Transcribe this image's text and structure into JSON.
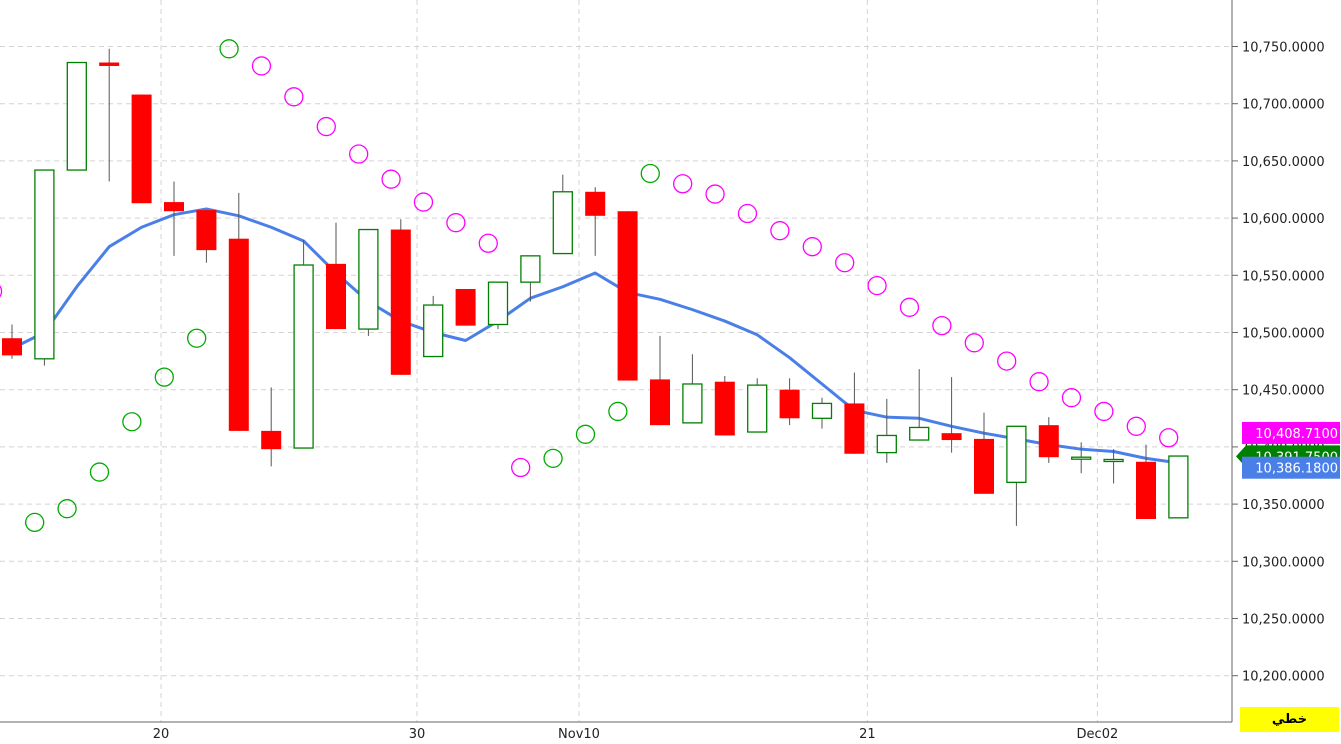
{
  "chart_data": {
    "type": "candlestick",
    "title": "",
    "xlabel": "",
    "ylabel": "",
    "ylim": [
      10160,
      10785
    ],
    "y_ticks": [
      10200,
      10250,
      10300,
      10350,
      10400,
      10450,
      10500,
      10550,
      10600,
      10650,
      10700,
      10750
    ],
    "y_tick_labels": [
      "10,200.0000",
      "10,250.0000",
      "10,300.0000",
      "10,350.0000",
      "10,400.0000",
      "10,450.0000",
      "10,500.0000",
      "10,550.0000",
      "10,600.0000",
      "10,650.0000",
      "10,700.0000",
      "10,750.0000"
    ],
    "grid": true,
    "x_labels": [
      {
        "index": 4.6,
        "label": "20"
      },
      {
        "index": 12.5,
        "label": "30"
      },
      {
        "index": 17.5,
        "label": "Nov10"
      },
      {
        "index": 26.4,
        "label": "21"
      },
      {
        "index": 33.5,
        "label": "Dec02"
      }
    ],
    "candles": [
      {
        "o": 10495,
        "h": 10507,
        "l": 10477,
        "c": 10480
      },
      {
        "o": 10477,
        "h": 10642,
        "l": 10471,
        "c": 10642
      },
      {
        "o": 10642,
        "h": 10736,
        "l": 10642,
        "c": 10736
      },
      {
        "o": 10736,
        "h": 10748,
        "l": 10632,
        "c": 10733
      },
      {
        "o": 10708,
        "h": 10708,
        "l": 10613,
        "c": 10613
      },
      {
        "o": 10614,
        "h": 10632,
        "l": 10567,
        "c": 10606
      },
      {
        "o": 10607,
        "h": 10607,
        "l": 10561,
        "c": 10572
      },
      {
        "o": 10582,
        "h": 10622,
        "l": 10414,
        "c": 10414
      },
      {
        "o": 10414,
        "h": 10452,
        "l": 10383,
        "c": 10398
      },
      {
        "o": 10399,
        "h": 10581,
        "l": 10399,
        "c": 10559
      },
      {
        "o": 10560,
        "h": 10596,
        "l": 10503,
        "c": 10503
      },
      {
        "o": 10503,
        "h": 10590,
        "l": 10497,
        "c": 10590
      },
      {
        "o": 10590,
        "h": 10599,
        "l": 10463,
        "c": 10463
      },
      {
        "o": 10479,
        "h": 10532,
        "l": 10479,
        "c": 10524
      },
      {
        "o": 10538,
        "h": 10538,
        "l": 10506,
        "c": 10506
      },
      {
        "o": 10507,
        "h": 10544,
        "l": 10503,
        "c": 10544
      },
      {
        "o": 10544,
        "h": 10567,
        "l": 10527,
        "c": 10567
      },
      {
        "o": 10569,
        "h": 10638,
        "l": 10569,
        "c": 10623
      },
      {
        "o": 10623,
        "h": 10627,
        "l": 10567,
        "c": 10602
      },
      {
        "o": 10606,
        "h": 10606,
        "l": 10458,
        "c": 10458
      },
      {
        "o": 10459,
        "h": 10497,
        "l": 10419,
        "c": 10419
      },
      {
        "o": 10421,
        "h": 10481,
        "l": 10421,
        "c": 10455
      },
      {
        "o": 10457,
        "h": 10462,
        "l": 10410,
        "c": 10410
      },
      {
        "o": 10413,
        "h": 10460,
        "l": 10413,
        "c": 10454
      },
      {
        "o": 10450,
        "h": 10460,
        "l": 10419,
        "c": 10425
      },
      {
        "o": 10425,
        "h": 10443,
        "l": 10416,
        "c": 10438
      },
      {
        "o": 10438,
        "h": 10465,
        "l": 10394,
        "c": 10394
      },
      {
        "o": 10395,
        "h": 10442,
        "l": 10386,
        "c": 10410
      },
      {
        "o": 10406,
        "h": 10468,
        "l": 10406,
        "c": 10417
      },
      {
        "o": 10412,
        "h": 10461,
        "l": 10395,
        "c": 10406
      },
      {
        "o": 10407,
        "h": 10430,
        "l": 10359,
        "c": 10359
      },
      {
        "o": 10369,
        "h": 10418,
        "l": 10331,
        "c": 10418
      },
      {
        "o": 10419,
        "h": 10426,
        "l": 10386,
        "c": 10391
      },
      {
        "o": 10391,
        "h": 10404,
        "l": 10377,
        "c": 10391
      },
      {
        "o": 10389,
        "h": 10398,
        "l": 10368,
        "c": 10389
      },
      {
        "o": 10387,
        "h": 10402,
        "l": 10337,
        "c": 10337
      },
      {
        "o": 10338,
        "h": 10392,
        "l": 10338,
        "c": 10392
      }
    ],
    "moving_average": {
      "color": "#4a7fe8",
      "points": [
        [
          0,
          10486
        ],
        [
          1,
          10500
        ],
        [
          2,
          10540
        ],
        [
          3,
          10575
        ],
        [
          4,
          10592
        ],
        [
          5,
          10603
        ],
        [
          6,
          10608
        ],
        [
          7,
          10602
        ],
        [
          8,
          10592
        ],
        [
          9,
          10580
        ],
        [
          10,
          10552
        ],
        [
          11,
          10527
        ],
        [
          12,
          10510
        ],
        [
          13,
          10500
        ],
        [
          14,
          10493
        ],
        [
          15,
          10510
        ],
        [
          16,
          10530
        ],
        [
          17,
          10540
        ],
        [
          18,
          10552
        ],
        [
          19,
          10535
        ],
        [
          20,
          10529
        ],
        [
          21,
          10520
        ],
        [
          22,
          10510
        ],
        [
          23,
          10498
        ],
        [
          24,
          10478
        ],
        [
          25,
          10455
        ],
        [
          26,
          10432
        ],
        [
          27,
          10426
        ],
        [
          28,
          10425
        ],
        [
          29,
          10418
        ],
        [
          30,
          10412
        ],
        [
          31,
          10407
        ],
        [
          32,
          10402
        ],
        [
          33,
          10398
        ],
        [
          34,
          10396
        ],
        [
          35,
          10390
        ],
        [
          36,
          10386
        ]
      ]
    },
    "parabolic_sar": {
      "points": [
        {
          "i": -0.6,
          "v": 10536,
          "color": "#ff00ff"
        },
        {
          "i": 0.7,
          "v": 10334,
          "color": "#00aa00"
        },
        {
          "i": 1.7,
          "v": 10346,
          "color": "#00aa00"
        },
        {
          "i": 2.7,
          "v": 10378,
          "color": "#00aa00"
        },
        {
          "i": 3.7,
          "v": 10422,
          "color": "#00aa00"
        },
        {
          "i": 4.7,
          "v": 10461,
          "color": "#00aa00"
        },
        {
          "i": 5.7,
          "v": 10495,
          "color": "#00aa00"
        },
        {
          "i": 6.7,
          "v": 10748,
          "color": "#00aa00"
        },
        {
          "i": 7.7,
          "v": 10733,
          "color": "#ff00ff"
        },
        {
          "i": 8.7,
          "v": 10706,
          "color": "#ff00ff"
        },
        {
          "i": 9.7,
          "v": 10680,
          "color": "#ff00ff"
        },
        {
          "i": 10.7,
          "v": 10656,
          "color": "#ff00ff"
        },
        {
          "i": 11.7,
          "v": 10634,
          "color": "#ff00ff"
        },
        {
          "i": 12.7,
          "v": 10614,
          "color": "#ff00ff"
        },
        {
          "i": 13.7,
          "v": 10596,
          "color": "#ff00ff"
        },
        {
          "i": 14.7,
          "v": 10578,
          "color": "#ff00ff"
        },
        {
          "i": 15.7,
          "v": 10382,
          "color": "#ff00ff"
        },
        {
          "i": 16.7,
          "v": 10390,
          "color": "#00aa00"
        },
        {
          "i": 17.7,
          "v": 10411,
          "color": "#00aa00"
        },
        {
          "i": 18.7,
          "v": 10431,
          "color": "#00aa00"
        },
        {
          "i": 19.7,
          "v": 10639,
          "color": "#00aa00"
        },
        {
          "i": 20.7,
          "v": 10630,
          "color": "#ff00ff"
        },
        {
          "i": 21.7,
          "v": 10621,
          "color": "#ff00ff"
        },
        {
          "i": 22.7,
          "v": 10604,
          "color": "#ff00ff"
        },
        {
          "i": 23.7,
          "v": 10589,
          "color": "#ff00ff"
        },
        {
          "i": 24.7,
          "v": 10575,
          "color": "#ff00ff"
        },
        {
          "i": 25.7,
          "v": 10561,
          "color": "#ff00ff"
        },
        {
          "i": 26.7,
          "v": 10541,
          "color": "#ff00ff"
        },
        {
          "i": 27.7,
          "v": 10522,
          "color": "#ff00ff"
        },
        {
          "i": 28.7,
          "v": 10506,
          "color": "#ff00ff"
        },
        {
          "i": 29.7,
          "v": 10491,
          "color": "#ff00ff"
        },
        {
          "i": 30.7,
          "v": 10475,
          "color": "#ff00ff"
        },
        {
          "i": 31.7,
          "v": 10457,
          "color": "#ff00ff"
        },
        {
          "i": 32.7,
          "v": 10443,
          "color": "#ff00ff"
        },
        {
          "i": 33.7,
          "v": 10431,
          "color": "#ff00ff"
        },
        {
          "i": 34.7,
          "v": 10418,
          "color": "#ff00ff"
        },
        {
          "i": 35.7,
          "v": 10408,
          "color": "#ff00ff"
        }
      ]
    },
    "price_badges": [
      {
        "text": "10,408.7100",
        "value": 10408.71,
        "color": "#ff00ff"
      },
      {
        "text": "10,391.7500",
        "value": 10391.75,
        "color": "#008000"
      },
      {
        "text": "10,386.1800",
        "value": 10386.18,
        "color": "#4a7fe8"
      }
    ],
    "colors": {
      "bull": "#008000",
      "bear": "#ff0000",
      "wick": "#555555",
      "grid": "#d4d4d4"
    }
  },
  "scale_label": "خطي"
}
